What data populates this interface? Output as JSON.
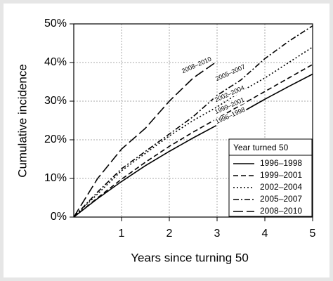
{
  "chart_data": {
    "type": "line",
    "x_label": "Years since turning 50",
    "y_label": "Cumulative incidence",
    "legend_title": "Year turned 50",
    "legend": "lower right",
    "grid": true,
    "x": [
      0,
      0.5,
      1,
      1.5,
      2,
      2.5,
      3,
      3.5,
      4,
      4.5,
      5
    ],
    "xlim": [
      0,
      5
    ],
    "xticks": [
      1,
      2,
      3,
      4,
      5
    ],
    "ylim": [
      0,
      50
    ],
    "yticks": [
      {
        "value": 0,
        "label": "0%"
      },
      {
        "value": 10,
        "label": "10%"
      },
      {
        "value": 20,
        "label": "20%"
      },
      {
        "value": 30,
        "label": "30%"
      },
      {
        "value": 40,
        "label": "40%"
      },
      {
        "value": 50,
        "label": "50%"
      }
    ],
    "series": [
      {
        "name": "1996–1998",
        "color": "#000000",
        "dash": "none",
        "values": [
          0,
          4.8,
          9.2,
          13.3,
          17,
          20.5,
          23.8,
          27,
          30.5,
          33.8,
          37
        ]
      },
      {
        "name": "1999–2001",
        "color": "#000000",
        "dash": "7,4",
        "values": [
          0,
          5,
          9.8,
          14.2,
          18.3,
          22,
          25.5,
          29,
          32.5,
          36,
          39.5
        ]
      },
      {
        "name": "2002–2004",
        "color": "#000000",
        "dash": "2,3",
        "values": [
          0,
          6,
          12,
          16.5,
          21,
          25,
          28.5,
          32.5,
          36,
          40,
          44
        ]
      },
      {
        "name": "2005–2007",
        "color": "#000000",
        "dash": "8,3,2,3",
        "values": [
          0,
          6.5,
          12.5,
          17,
          21.5,
          26,
          31.5,
          35.5,
          41,
          45.5,
          49.5
        ]
      },
      {
        "name": "2008–2010",
        "color": "#000000",
        "dash": "14,5",
        "values": [
          0,
          10,
          17.6,
          23,
          30,
          36,
          40.3,
          null,
          null,
          null,
          null
        ]
      }
    ]
  }
}
